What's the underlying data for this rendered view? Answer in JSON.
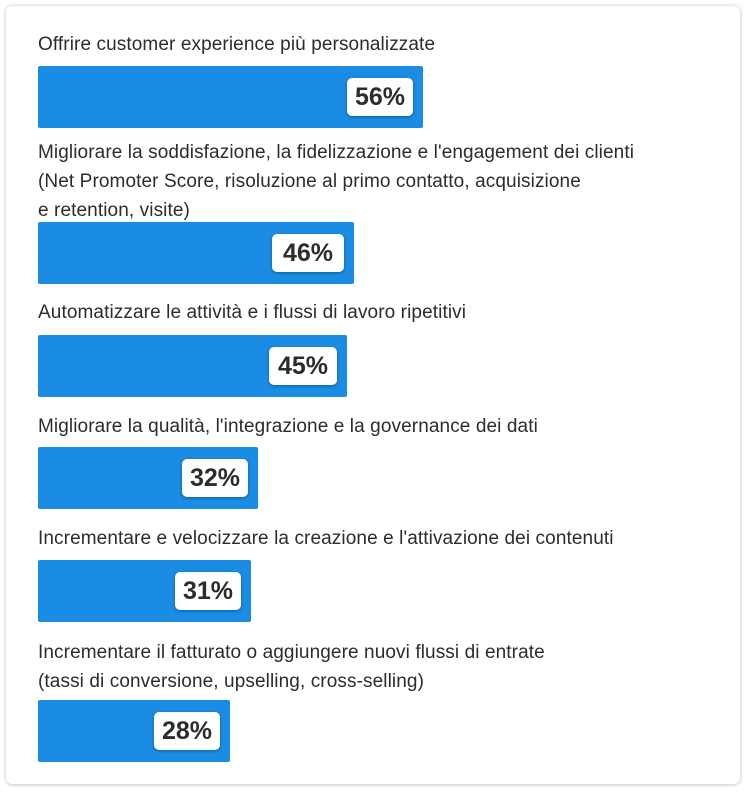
{
  "chart_data": {
    "type": "bar",
    "orientation": "horizontal",
    "categories": [
      "Offrire customer experience più personalizzate",
      "Migliorare la soddisfazione, la fidelizzazione e l'engagement dei clienti\n(Net Promoter Score, risoluzione al primo contatto, acquisizione\ne retention, visite)",
      "Automatizzare le attività e i flussi di lavoro ripetitivi",
      "Migliorare la qualità, l'integrazione e la governance dei dati",
      "Incrementare e velocizzare la creazione e l'attivazione dei contenuti",
      "Incrementare il fatturato o aggiungere nuovi flussi di entrate\n(tassi di conversione, upselling, cross-selling)"
    ],
    "values": [
      56,
      46,
      45,
      32,
      31,
      28
    ],
    "value_labels": [
      "56%",
      "46%",
      "45%",
      "32%",
      "31%",
      "28%"
    ],
    "bar_color": "#1b8ce3",
    "xlim": [
      0,
      100
    ],
    "grid": false,
    "legend": "none"
  }
}
